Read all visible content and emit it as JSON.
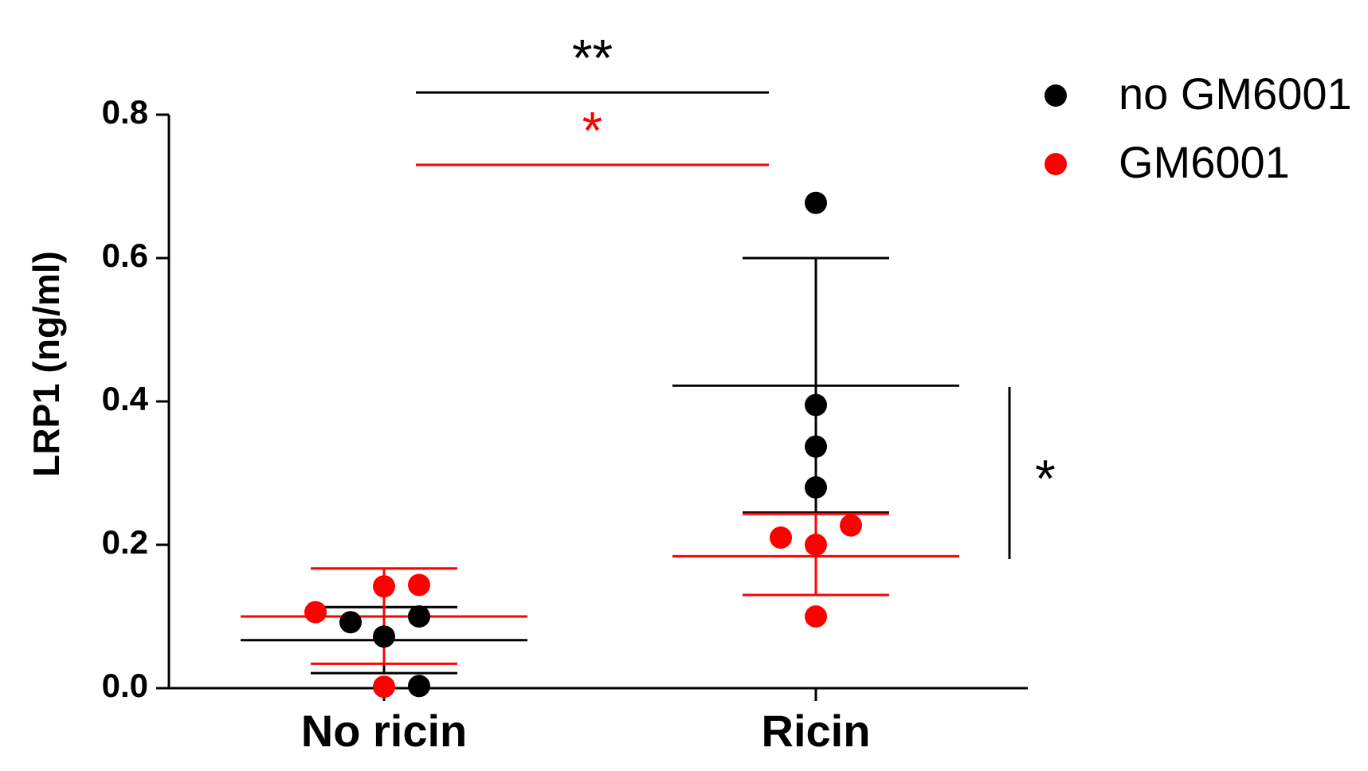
{
  "chart_data": {
    "type": "scatter",
    "ylabel": "LRP1 (ng/ml)",
    "xlabel": "",
    "ylim": [
      0,
      0.8
    ],
    "yticks": [
      "0.0",
      "0.2",
      "0.4",
      "0.6",
      "0.8"
    ],
    "ytick_values": [
      0,
      0.2,
      0.4,
      0.6,
      0.8
    ],
    "categories": [
      "No ricin",
      "Ricin"
    ],
    "grid": false,
    "legend_position": "top-right",
    "series": [
      {
        "name": "no GM6001",
        "color": "#000000",
        "points": [
          {
            "category": "No ricin",
            "value": 0.092
          },
          {
            "category": "No ricin",
            "value": 0.072
          },
          {
            "category": "No ricin",
            "value": 0.1
          },
          {
            "category": "No ricin",
            "value": 0.003
          },
          {
            "category": "Ricin",
            "value": 0.677
          },
          {
            "category": "Ricin",
            "value": 0.395
          },
          {
            "category": "Ricin",
            "value": 0.337
          },
          {
            "category": "Ricin",
            "value": 0.28
          }
        ],
        "summary": [
          {
            "category": "No ricin",
            "mean": 0.067,
            "lower": 0.021,
            "upper": 0.113
          },
          {
            "category": "Ricin",
            "mean": 0.422,
            "lower": 0.245,
            "upper": 0.6
          }
        ]
      },
      {
        "name": "GM6001",
        "color": "#ff0000",
        "points": [
          {
            "category": "No ricin",
            "value": 0.106
          },
          {
            "category": "No ricin",
            "value": 0.142
          },
          {
            "category": "No ricin",
            "value": 0.144
          },
          {
            "category": "No ricin",
            "value": 0.002
          },
          {
            "category": "Ricin",
            "value": 0.21
          },
          {
            "category": "Ricin",
            "value": 0.2
          },
          {
            "category": "Ricin",
            "value": 0.227
          },
          {
            "category": "Ricin",
            "value": 0.1
          }
        ],
        "summary": [
          {
            "category": "No ricin",
            "mean": 0.1,
            "lower": 0.034,
            "upper": 0.167
          },
          {
            "category": "Ricin",
            "mean": 0.184,
            "lower": 0.13,
            "upper": 0.243
          }
        ]
      }
    ],
    "annotations": [
      {
        "text": "**",
        "color": "#000000",
        "type": "bracket-horizontal",
        "from": "No ricin",
        "to": "Ricin",
        "level": 0.831
      },
      {
        "text": "*",
        "color": "#ff0000",
        "type": "bracket-horizontal",
        "from": "No ricin",
        "to": "Ricin",
        "level": 0.73
      },
      {
        "text": "*",
        "color": "#000000",
        "type": "bracket-vertical",
        "category": "Ricin",
        "from": 0.18,
        "to": 0.42
      }
    ]
  }
}
